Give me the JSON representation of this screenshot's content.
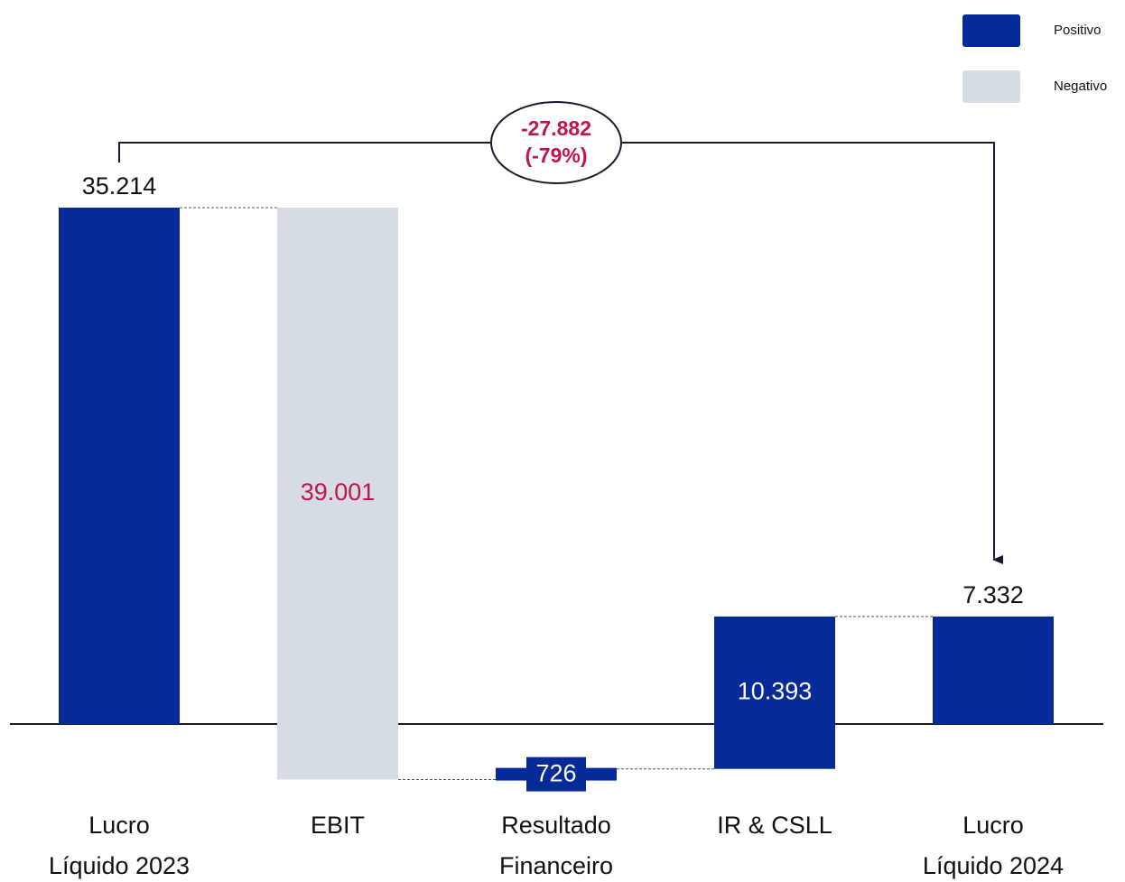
{
  "chart_data": {
    "type": "waterfall",
    "categories": [
      [
        "Lucro",
        "Líquido 2023"
      ],
      [
        "EBIT"
      ],
      [
        "Resultado",
        "Financeiro"
      ],
      [
        "IR & CSLL"
      ],
      [
        "Lucro",
        "Líquido 2024"
      ]
    ],
    "values": [
      35214,
      -39001,
      726,
      10393,
      7332
    ],
    "value_labels": [
      "35.214",
      "39.001",
      "726",
      "10.393",
      "7.332"
    ],
    "legend": [
      {
        "name": "Positivo",
        "color": "#062a98"
      },
      {
        "name": "Negativo",
        "color": "#d6dce4"
      }
    ],
    "annotation": [
      "-27.882",
      "(-79%)"
    ]
  }
}
